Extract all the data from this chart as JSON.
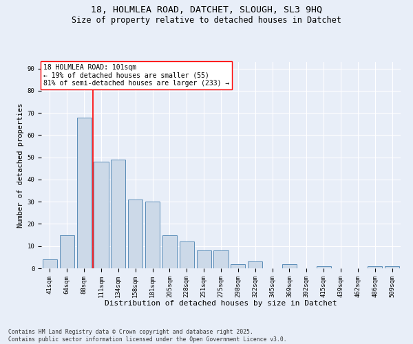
{
  "title_line1": "18, HOLMLEA ROAD, DATCHET, SLOUGH, SL3 9HQ",
  "title_line2": "Size of property relative to detached houses in Datchet",
  "xlabel": "Distribution of detached houses by size in Datchet",
  "ylabel": "Number of detached properties",
  "categories": [
    "41sqm",
    "64sqm",
    "88sqm",
    "111sqm",
    "134sqm",
    "158sqm",
    "181sqm",
    "205sqm",
    "228sqm",
    "251sqm",
    "275sqm",
    "298sqm",
    "322sqm",
    "345sqm",
    "369sqm",
    "392sqm",
    "415sqm",
    "439sqm",
    "462sqm",
    "486sqm",
    "509sqm"
  ],
  "values": [
    4,
    15,
    68,
    48,
    49,
    31,
    30,
    15,
    12,
    8,
    8,
    2,
    3,
    0,
    2,
    0,
    1,
    0,
    0,
    1,
    1
  ],
  "bar_color": "#ccd9e8",
  "bar_edge_color": "#5b8db8",
  "bar_linewidth": 0.7,
  "vline_x_index": 2.5,
  "vline_color": "red",
  "vline_linewidth": 1.2,
  "annotation_text": "18 HOLMLEA ROAD: 101sqm\n← 19% of detached houses are smaller (55)\n81% of semi-detached houses are larger (233) →",
  "annotation_box_color": "white",
  "annotation_box_edge": "red",
  "annotation_fontsize": 7.0,
  "ylim": [
    0,
    93
  ],
  "yticks": [
    0,
    10,
    20,
    30,
    40,
    50,
    60,
    70,
    80,
    90
  ],
  "background_color": "#e8eef8",
  "grid_color": "white",
  "footnote": "Contains HM Land Registry data © Crown copyright and database right 2025.\nContains public sector information licensed under the Open Government Licence v3.0.",
  "title_fontsize": 9.5,
  "subtitle_fontsize": 8.5,
  "xlabel_fontsize": 8.0,
  "ylabel_fontsize": 7.5,
  "tick_fontsize": 6.5,
  "footnote_fontsize": 5.8
}
